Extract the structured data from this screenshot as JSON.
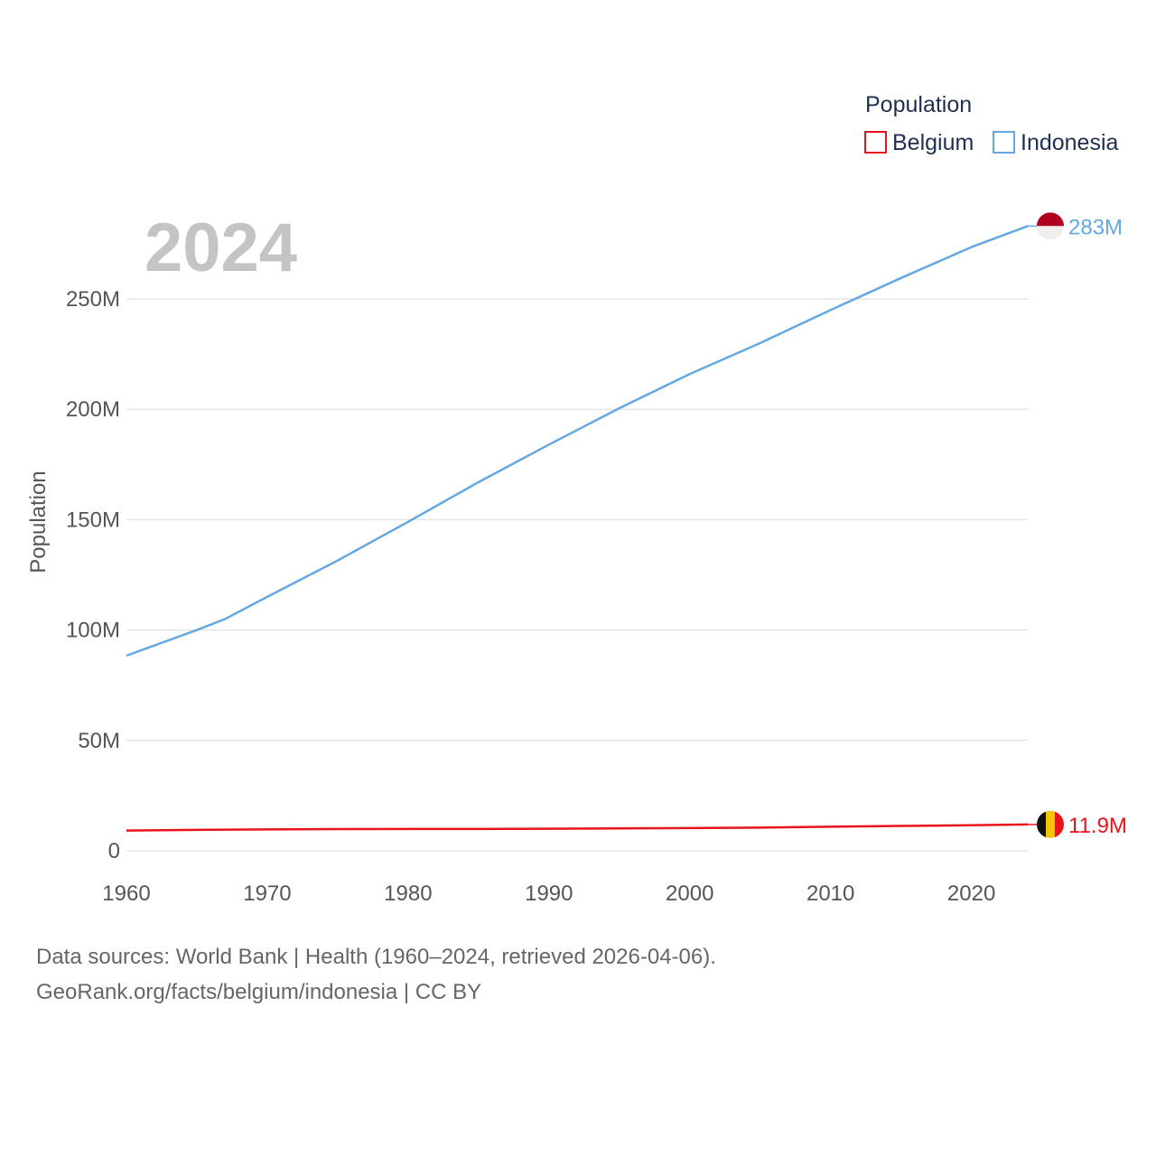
{
  "chart_data": {
    "type": "line",
    "year_label": "2024",
    "ylabel": "Population",
    "xlabel": "",
    "legend_title": "Population",
    "xlim": [
      1960,
      2024
    ],
    "ylim": [
      0,
      290000000
    ],
    "x_ticks": [
      1960,
      1970,
      1980,
      1990,
      2000,
      2010,
      2020
    ],
    "y_ticks": [
      {
        "value": 0,
        "label": "0"
      },
      {
        "value": 50000000,
        "label": "50M"
      },
      {
        "value": 100000000,
        "label": "100M"
      },
      {
        "value": 150000000,
        "label": "150M"
      },
      {
        "value": 200000000,
        "label": "200M"
      },
      {
        "value": 250000000,
        "label": "250M"
      }
    ],
    "series": [
      {
        "name": "Belgium",
        "color": "#e8141c",
        "end_label": "11.9M",
        "flag_icon": "belgium-flag-icon",
        "x": [
          1960,
          1965,
          1970,
          1975,
          1980,
          1985,
          1990,
          1995,
          2000,
          2005,
          2010,
          2015,
          2020,
          2024
        ],
        "values": [
          9150000,
          9450000,
          9650000,
          9800000,
          9860000,
          9860000,
          9970000,
          10140000,
          10250000,
          10480000,
          10900000,
          11270000,
          11540000,
          11900000
        ]
      },
      {
        "name": "Indonesia",
        "color": "#65a8e1",
        "end_label": "283M",
        "flag_icon": "indonesia-flag-icon",
        "x": [
          1960,
          1965,
          1967,
          1970,
          1975,
          1980,
          1985,
          1990,
          1995,
          2000,
          2005,
          2010,
          2015,
          2020,
          2024
        ],
        "values": [
          88400000,
          100000000,
          105000000,
          115000000,
          131500000,
          149000000,
          167000000,
          184000000,
          200500000,
          216000000,
          230000000,
          245000000,
          259500000,
          273500000,
          283000000
        ]
      }
    ]
  },
  "footer": {
    "line1": "Data sources: World Bank | Health (1960–2024, retrieved 2026-04-06).",
    "line2": "GeoRank.org/facts/belgium/indonesia | CC BY"
  }
}
